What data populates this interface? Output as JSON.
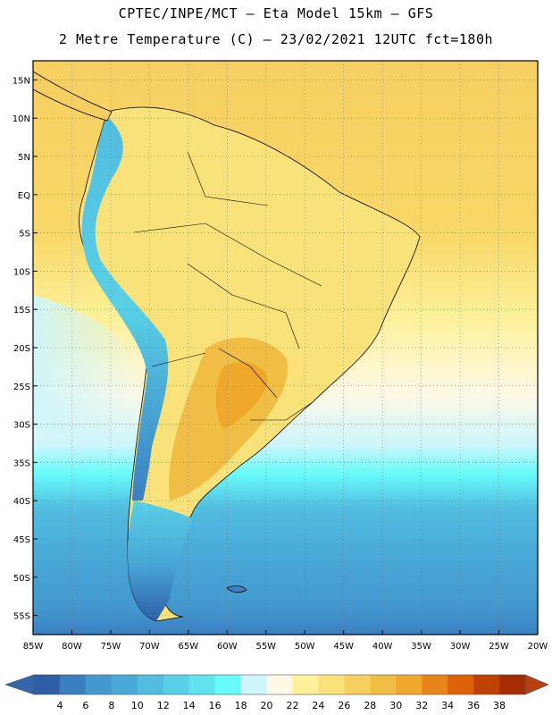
{
  "header": {
    "line1": "CPTEC/INPE/MCT –  Eta Model 15km – GFS",
    "line2": "2 Metre Temperature (C) – 23/02/2021 12UTC fct=180h"
  },
  "map": {
    "lat_labels": [
      "15N",
      "10N",
      "5N",
      "EQ",
      "5S",
      "10S",
      "15S",
      "20S",
      "25S",
      "30S",
      "35S",
      "40S",
      "45S",
      "50S",
      "55S"
    ],
    "lon_labels": [
      "85W",
      "80W",
      "75W",
      "70W",
      "65W",
      "60W",
      "55W",
      "50W",
      "45W",
      "40W",
      "35W",
      "30W",
      "25W",
      "20W"
    ],
    "lat_range": [
      17.5,
      -57.5
    ],
    "lon_range": [
      -85,
      -20
    ],
    "grid": "dotted"
  },
  "colorbar": {
    "labels": [
      "4",
      "6",
      "8",
      "10",
      "12",
      "14",
      "16",
      "18",
      "20",
      "22",
      "24",
      "26",
      "28",
      "30",
      "32",
      "34",
      "36",
      "38"
    ],
    "colors": [
      "#2f5ea8",
      "#3a7fc2",
      "#4399cf",
      "#49aad8",
      "#52bde0",
      "#58d0e6",
      "#5fe4ee",
      "#67fbfb",
      "#cdf5fb",
      "#fef9e6",
      "#fdf19a",
      "#fae27a",
      "#f6cf61",
      "#f1be45",
      "#efa82a",
      "#e98418",
      "#de6108",
      "#c04203",
      "#a42c00"
    ],
    "under_color": "#3366aa",
    "over_color": "#b8400e"
  }
}
